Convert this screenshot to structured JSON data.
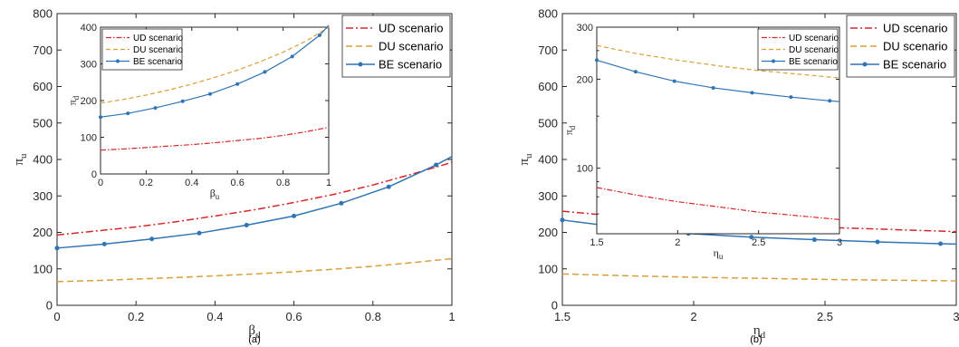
{
  "colors": {
    "UD": "#d62728",
    "DU": "#d8a03a",
    "BE": "#2f74b5",
    "axis": "#262626"
  },
  "chart_data": [
    {
      "id": "a-main",
      "type": "line",
      "title": "",
      "caption": "(a)",
      "xlabel": "β",
      "xlabel_sub": "d",
      "ylabel": "π",
      "ylabel_sub": "u",
      "xlim": [
        0,
        1
      ],
      "ylim": [
        0,
        800
      ],
      "xticks": [
        0,
        0.2,
        0.4,
        0.6,
        0.8,
        1
      ],
      "xtick_labels": [
        "0",
        "0.2",
        "0.4",
        "0.6",
        "0.8",
        "1"
      ],
      "yticks": [
        0,
        100,
        200,
        300,
        400,
        500,
        600,
        700,
        800
      ],
      "ytick_labels": [
        "0",
        "100",
        "200",
        "300",
        "400",
        "500",
        "600",
        "700",
        "800"
      ],
      "legend": {
        "position": "top-right"
      },
      "series": [
        {
          "name": "UD scenario",
          "style": "dashdot",
          "color": "#d62728",
          "x": [
            0,
            0.1,
            0.2,
            0.3,
            0.4,
            0.5,
            0.6,
            0.7,
            0.8,
            0.9,
            1
          ],
          "y": [
            193,
            204,
            215,
            229,
            245,
            262,
            282,
            304,
            330,
            360,
            392
          ]
        },
        {
          "name": "DU scenario",
          "style": "dashed",
          "color": "#d8a03a",
          "x": [
            0,
            0.1,
            0.2,
            0.3,
            0.4,
            0.5,
            0.6,
            0.7,
            0.8,
            0.9,
            1
          ],
          "y": [
            65,
            68,
            72,
            76,
            81,
            86,
            92,
            99,
            107,
            117,
            128
          ]
        },
        {
          "name": "BE scenario",
          "style": "solid-marker",
          "color": "#2f74b5",
          "x": [
            0,
            0.12,
            0.24,
            0.36,
            0.48,
            0.6,
            0.72,
            0.84,
            0.96,
            1
          ],
          "y": [
            157,
            168,
            182,
            198,
            220,
            245,
            280,
            325,
            385,
            408
          ]
        }
      ]
    },
    {
      "id": "a-inset",
      "type": "line",
      "title": "",
      "xlabel": "β",
      "xlabel_sub": "u",
      "ylabel": "π",
      "ylabel_sub": "d",
      "xlim": [
        0,
        1
      ],
      "ylim": [
        0,
        400
      ],
      "xticks": [
        0,
        0.2,
        0.4,
        0.6,
        0.8,
        1
      ],
      "xtick_labels": [
        "0",
        "0.2",
        "0.4",
        "0.6",
        "0.8",
        "1"
      ],
      "yticks": [
        0,
        100,
        200,
        300,
        400
      ],
      "ytick_labels": [
        "0",
        "100",
        "200",
        "300",
        "400"
      ],
      "legend": {
        "position": "top-left"
      },
      "series": [
        {
          "name": "UD scenario",
          "style": "dashdot",
          "color": "#d62728",
          "x": [
            0,
            0.1,
            0.2,
            0.3,
            0.4,
            0.5,
            0.6,
            0.7,
            0.8,
            0.9,
            1
          ],
          "y": [
            65,
            68,
            72,
            76,
            80,
            85,
            91,
            97,
            105,
            115,
            127
          ]
        },
        {
          "name": "DU scenario",
          "style": "dashed",
          "color": "#d8a03a",
          "x": [
            0,
            0.1,
            0.2,
            0.3,
            0.4,
            0.5,
            0.6,
            0.7,
            0.8,
            0.9,
            1
          ],
          "y": [
            193,
            203,
            215,
            229,
            245,
            263,
            283,
            306,
            332,
            362,
            400
          ]
        },
        {
          "name": "BE scenario",
          "style": "solid-marker",
          "color": "#2f74b5",
          "x": [
            0,
            0.12,
            0.24,
            0.36,
            0.48,
            0.6,
            0.72,
            0.84,
            0.96,
            1
          ],
          "y": [
            155,
            165,
            180,
            198,
            218,
            245,
            278,
            320,
            378,
            405
          ]
        }
      ]
    },
    {
      "id": "b-main",
      "type": "line",
      "title": "",
      "caption": "(b)",
      "xlabel": "η",
      "xlabel_sub": "d",
      "ylabel": "π",
      "ylabel_sub": "u",
      "xlim": [
        1.5,
        3
      ],
      "ylim": [
        0,
        800
      ],
      "xticks": [
        1.5,
        2,
        2.5,
        3
      ],
      "xtick_labels": [
        "1.5",
        "2",
        "2.5",
        "3"
      ],
      "yticks": [
        0,
        100,
        200,
        300,
        400,
        500,
        600,
        700,
        800
      ],
      "ytick_labels": [
        "0",
        "100",
        "200",
        "300",
        "400",
        "500",
        "600",
        "700",
        "800"
      ],
      "legend": {
        "position": "top-right"
      },
      "series": [
        {
          "name": "UD scenario",
          "style": "dashdot",
          "color": "#d62728",
          "x": [
            1.5,
            1.75,
            2,
            2.25,
            2.5,
            2.75,
            3
          ],
          "y": [
            258,
            242,
            230,
            222,
            214,
            208,
            202
          ]
        },
        {
          "name": "DU scenario",
          "style": "dashed",
          "color": "#d8a03a",
          "x": [
            1.5,
            1.75,
            2,
            2.25,
            2.5,
            2.75,
            3
          ],
          "y": [
            86,
            81,
            77,
            74,
            71,
            69,
            67
          ]
        },
        {
          "name": "BE scenario",
          "style": "solid-marker",
          "color": "#2f74b5",
          "x": [
            1.5,
            1.74,
            1.98,
            2.22,
            2.46,
            2.7,
            2.94,
            3
          ],
          "y": [
            234,
            212,
            197,
            187,
            180,
            174,
            169,
            168
          ]
        }
      ]
    },
    {
      "id": "b-inset",
      "type": "line",
      "title": "",
      "xlabel": "η",
      "xlabel_sub": "u",
      "ylabel": "π",
      "ylabel_sub": "d",
      "xlim": [
        1.5,
        3
      ],
      "ylim": [
        60,
        300
      ],
      "scale_y": "log",
      "xticks": [
        1.5,
        2,
        2.5,
        3
      ],
      "xtick_labels": [
        "1.5",
        "2",
        "2.5",
        "3"
      ],
      "yticks": [
        100,
        200,
        300
      ],
      "ytick_labels": [
        "100",
        "200",
        "300"
      ],
      "legend": {
        "position": "top-right"
      },
      "series": [
        {
          "name": "UD scenario",
          "style": "dashdot",
          "color": "#d62728",
          "x": [
            1.5,
            1.75,
            2,
            2.25,
            2.5,
            2.75,
            3
          ],
          "y": [
            86,
            81,
            77,
            74,
            71,
            69,
            67
          ]
        },
        {
          "name": "DU scenario",
          "style": "dashed",
          "color": "#d8a03a",
          "x": [
            1.5,
            1.75,
            2,
            2.25,
            2.5,
            2.75,
            3
          ],
          "y": [
            260,
            244,
            232,
            222,
            214,
            208,
            202
          ]
        },
        {
          "name": "BE scenario",
          "style": "solid-marker",
          "color": "#2f74b5",
          "x": [
            1.5,
            1.74,
            1.98,
            2.22,
            2.46,
            2.7,
            2.94,
            3
          ],
          "y": [
            232,
            212,
            197,
            187,
            180,
            174,
            169,
            168
          ]
        }
      ]
    }
  ]
}
